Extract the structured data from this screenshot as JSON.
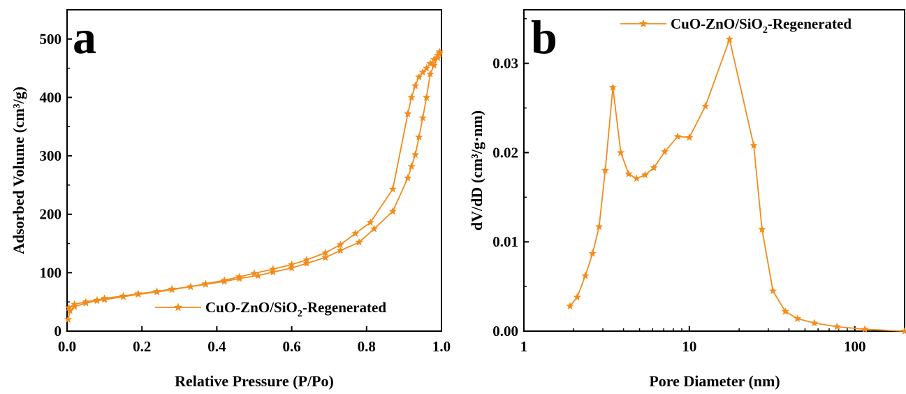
{
  "colors": {
    "series": "#f28c1c",
    "axis": "#000000"
  },
  "chart_data": [
    {
      "type": "line",
      "panel_label": "a",
      "xlabel": "Relative Pressure (P/Po)",
      "ylabel": "Adsorbed Volume (cm³/g)",
      "xlim": [
        0.0,
        1.0
      ],
      "ylim": [
        0,
        550
      ],
      "xticks": [
        0.0,
        0.2,
        0.4,
        0.6,
        0.8,
        1.0
      ],
      "xtick_labels": [
        "0.0",
        "0.2",
        "0.4",
        "0.6",
        "0.8",
        "1.0"
      ],
      "yticks": [
        0,
        100,
        200,
        300,
        400,
        500
      ],
      "ytick_labels": [
        "0",
        "100",
        "200",
        "300",
        "400",
        "500"
      ],
      "legend": {
        "label_main": "CuO-ZnO/SiO",
        "label_sub": "2",
        "label_end": "-Regenerated",
        "position": "lower-right"
      },
      "marker": "star",
      "series": [
        {
          "name": "adsorption",
          "x": [
            0.003,
            0.008,
            0.02,
            0.05,
            0.08,
            0.1,
            0.15,
            0.19,
            0.24,
            0.28,
            0.33,
            0.37,
            0.42,
            0.46,
            0.51,
            0.55,
            0.6,
            0.64,
            0.69,
            0.73,
            0.78,
            0.82,
            0.87,
            0.91,
            0.92,
            0.93,
            0.94,
            0.95,
            0.96,
            0.97,
            0.98,
            0.99,
            0.995
          ],
          "y": [
            20,
            35,
            42,
            48,
            52,
            54,
            59,
            63,
            67,
            71,
            76,
            80,
            85,
            90,
            95,
            101,
            108,
            116,
            126,
            138,
            152,
            175,
            205,
            262,
            282,
            302,
            332,
            365,
            400,
            440,
            455,
            468,
            475
          ]
        },
        {
          "name": "desorption",
          "x": [
            0.995,
            0.99,
            0.98,
            0.97,
            0.96,
            0.95,
            0.94,
            0.93,
            0.92,
            0.91,
            0.87,
            0.81,
            0.77,
            0.73,
            0.69,
            0.64,
            0.6,
            0.55,
            0.5,
            0.46,
            0.42,
            0.37,
            0.33,
            0.28,
            0.24,
            0.19,
            0.15,
            0.1,
            0.08,
            0.05,
            0.02,
            0.005
          ],
          "y": [
            478,
            472,
            465,
            458,
            450,
            443,
            435,
            420,
            400,
            372,
            243,
            186,
            167,
            148,
            134,
            122,
            114,
            106,
            99,
            93,
            87,
            81,
            76,
            72,
            68,
            64,
            60,
            56,
            53,
            50,
            46,
            40
          ]
        }
      ]
    },
    {
      "type": "line",
      "panel_label": "b",
      "xlabel": "Pore Diameter (nm)",
      "ylabel": "dV/dD (cm³/g·nm)",
      "xscale": "log",
      "xlim": [
        1,
        200
      ],
      "ylim": [
        0.0,
        0.036
      ],
      "xticks": [
        1,
        10,
        100
      ],
      "xtick_labels": [
        "1",
        "10",
        "100"
      ],
      "yticks": [
        0.0,
        0.01,
        0.02,
        0.03
      ],
      "ytick_labels": [
        "0.00",
        "0.01",
        "0.02",
        "0.03"
      ],
      "legend": {
        "label_main": "CuO-ZnO/SiO",
        "label_sub": "2",
        "label_end": "-Regenerated",
        "position": "top-right"
      },
      "marker": "star",
      "series": [
        {
          "name": "distribution",
          "x": [
            1.9,
            2.1,
            2.35,
            2.6,
            2.85,
            3.1,
            3.45,
            3.85,
            4.3,
            4.8,
            5.4,
            6.1,
            7.1,
            8.5,
            10.0,
            12.5,
            17.5,
            24.5,
            27.5,
            32.0,
            38.0,
            45.0,
            57.0,
            78.0,
            115.0,
            200.0
          ],
          "y": [
            0.0028,
            0.0038,
            0.0062,
            0.0087,
            0.0117,
            0.018,
            0.0273,
            0.02,
            0.0176,
            0.0171,
            0.0175,
            0.0183,
            0.0201,
            0.0218,
            0.0217,
            0.0252,
            0.0327,
            0.0208,
            0.0114,
            0.0045,
            0.0022,
            0.0014,
            0.0009,
            0.0005,
            0.0002,
            0.0
          ]
        }
      ]
    }
  ]
}
